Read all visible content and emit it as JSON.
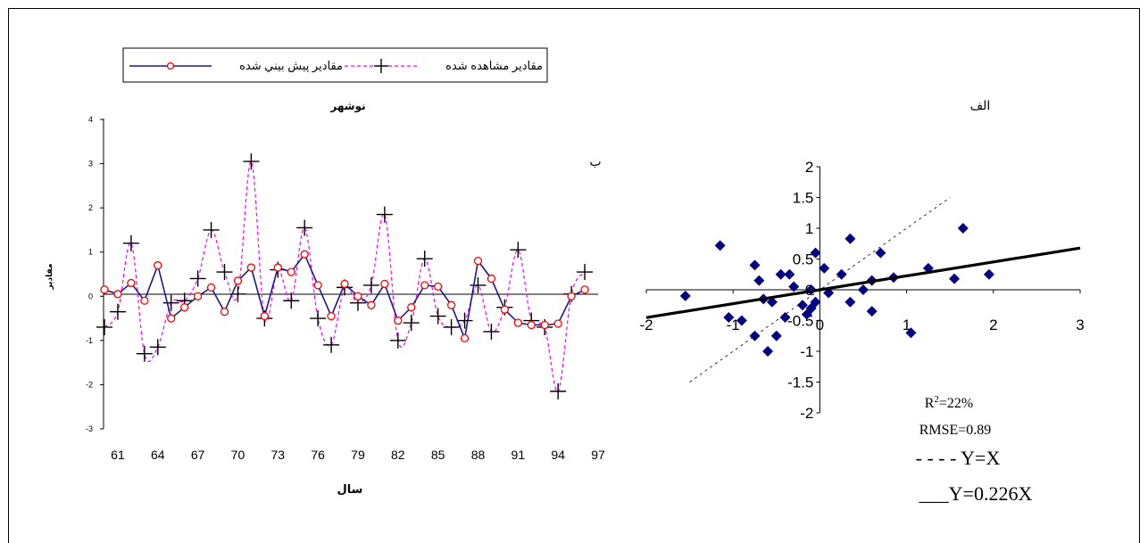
{
  "chart_data": [
    {
      "type": "line",
      "panel_label": "ب",
      "title": "نوشهر",
      "xlabel": "سال",
      "ylabel": "مقادير",
      "ylim": [
        -3,
        4
      ],
      "yticks": [
        "4",
        "3",
        "2",
        "1",
        "0",
        "-1",
        "-2",
        "-3"
      ],
      "xtick_labels": [
        "61",
        "64",
        "67",
        "70",
        "73",
        "76",
        "79",
        "82",
        "85",
        "88",
        "91",
        "94",
        "97"
      ],
      "x_start": 60,
      "x_end": 97,
      "legend": {
        "predicted": "مقادير پيش بيني شده",
        "observed": "مقادير مشاهده شده"
      },
      "series": [
        {
          "name": "مقادير پيش بيني شده",
          "style": "solid-line-circle-markers",
          "line_color": "#1a1a8c",
          "marker_color": "#ff0000",
          "x": [
            60,
            61,
            62,
            63,
            64,
            65,
            66,
            67,
            68,
            69,
            70,
            71,
            72,
            73,
            74,
            75,
            76,
            77,
            78,
            79,
            80,
            81,
            82,
            83,
            84,
            85,
            86,
            87,
            88,
            89,
            90,
            91,
            92,
            93,
            94,
            95,
            96
          ],
          "values": [
            0.15,
            0.05,
            0.3,
            -0.1,
            0.7,
            -0.5,
            -0.25,
            0,
            0.2,
            -0.35,
            0.35,
            0.65,
            -0.45,
            0.65,
            0.55,
            0.95,
            0.25,
            -0.45,
            0.28,
            0,
            -0.2,
            0.28,
            -0.55,
            -0.25,
            0.25,
            0.22,
            -0.2,
            -0.95,
            0.8,
            0.4,
            -0.3,
            -0.6,
            -0.65,
            -0.65,
            -0.62,
            0,
            0.15
          ]
        },
        {
          "name": "مقادير مشاهده شده",
          "style": "dashed-line-plus-markers",
          "line_color": "#ff00ff",
          "marker_color": "#000000",
          "x": [
            60,
            61,
            62,
            63,
            64,
            65,
            66,
            67,
            68,
            69,
            70,
            71,
            72,
            73,
            74,
            75,
            76,
            77,
            78,
            79,
            80,
            81,
            82,
            83,
            84,
            85,
            86,
            87,
            88,
            89,
            90,
            91,
            92,
            93,
            94,
            95,
            96
          ],
          "values": [
            -0.7,
            -0.35,
            1.2,
            -1.3,
            -1.15,
            -0.15,
            -0.1,
            0.4,
            1.5,
            0.55,
            0.05,
            3.05,
            -0.5,
            0.6,
            -0.1,
            1.55,
            -0.5,
            -1.1,
            0.2,
            -0.15,
            0.25,
            1.85,
            -1.0,
            -0.6,
            0.85,
            -0.45,
            -0.7,
            -0.55,
            0.25,
            -0.8,
            -0.25,
            1.05,
            -0.55,
            -0.7,
            -2.15,
            0.05,
            0.55
          ]
        }
      ]
    },
    {
      "type": "scatter",
      "panel_label": "الف",
      "xlim": [
        -2,
        3
      ],
      "ylim": [
        -2,
        2
      ],
      "xticks": [
        "-2",
        "-1",
        "0",
        "1",
        "2",
        "3"
      ],
      "yticks": [
        "2",
        "1.5",
        "1",
        "0.5",
        "0",
        "-0.5",
        "-1",
        "-1.5",
        "-2"
      ],
      "marker_color": "#000080",
      "points": [
        {
          "x": -1.55,
          "y": -0.1
        },
        {
          "x": -1.15,
          "y": 0.72
        },
        {
          "x": -1.05,
          "y": -0.45
        },
        {
          "x": -0.9,
          "y": -0.5
        },
        {
          "x": -0.75,
          "y": -0.75
        },
        {
          "x": -0.75,
          "y": 0.4
        },
        {
          "x": -0.7,
          "y": 0.15
        },
        {
          "x": -0.65,
          "y": -0.15
        },
        {
          "x": -0.6,
          "y": -1.0
        },
        {
          "x": -0.55,
          "y": -0.2
        },
        {
          "x": -0.5,
          "y": -0.75
        },
        {
          "x": -0.45,
          "y": 0.25
        },
        {
          "x": -0.4,
          "y": -0.45
        },
        {
          "x": -0.35,
          "y": 0.25
        },
        {
          "x": -0.3,
          "y": 0.05
        },
        {
          "x": -0.2,
          "y": -0.25
        },
        {
          "x": -0.15,
          "y": -0.4
        },
        {
          "x": -0.1,
          "y": -0.3
        },
        {
          "x": -0.1,
          "y": 0.0
        },
        {
          "x": -0.05,
          "y": -0.2
        },
        {
          "x": -0.05,
          "y": 0.6
        },
        {
          "x": 0.05,
          "y": 0.35
        },
        {
          "x": 0.1,
          "y": -0.05
        },
        {
          "x": 0.25,
          "y": 0.25
        },
        {
          "x": 0.35,
          "y": -0.2
        },
        {
          "x": 0.35,
          "y": 0.83
        },
        {
          "x": 0.5,
          "y": 0.0
        },
        {
          "x": 0.6,
          "y": -0.35
        },
        {
          "x": 0.6,
          "y": 0.15
        },
        {
          "x": 0.7,
          "y": 0.6
        },
        {
          "x": 0.85,
          "y": 0.2
        },
        {
          "x": 1.05,
          "y": -0.7
        },
        {
          "x": 1.25,
          "y": 0.35
        },
        {
          "x": 1.55,
          "y": 0.18
        },
        {
          "x": 1.65,
          "y": 1.0
        },
        {
          "x": 1.95,
          "y": 0.25
        }
      ],
      "fit_line": {
        "slope": 0.226,
        "intercept": 0
      },
      "reference_line": {
        "slope": 1,
        "intercept": 0
      },
      "annotations": {
        "r2_prefix": "R",
        "r2_sup": "2",
        "r2_value": "=22%",
        "rmse": "RMSE=0.89",
        "ref_legend": "- - - - Y=X",
        "fit_legend": "___Y=0.226X"
      }
    }
  ]
}
